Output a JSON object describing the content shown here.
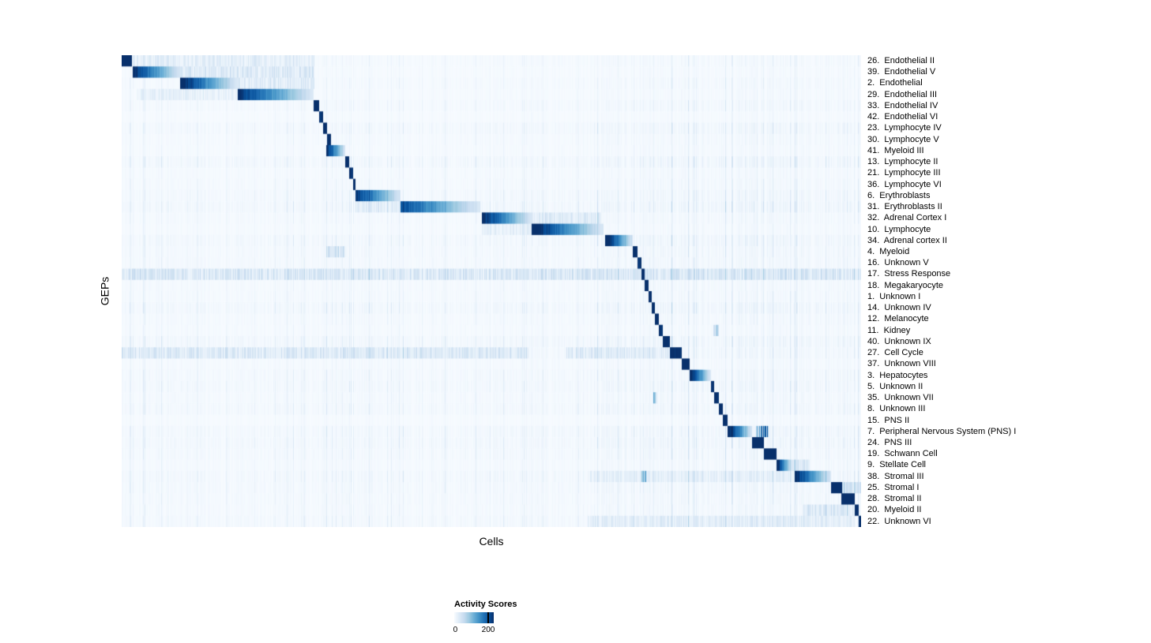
{
  "chart_data": {
    "type": "heatmap",
    "title": "",
    "xlabel": "Cells",
    "ylabel": "GEPs",
    "colormap": "Blues",
    "seed": 42,
    "colors": [
      "#f7fbff",
      "#deebf7",
      "#c6dbef",
      "#9ecae1",
      "#6baed6",
      "#4292c6",
      "#2171b5",
      "#08519c",
      "#08306b"
    ],
    "legend": {
      "title": "Activity Scores",
      "tick_labels": [
        "0",
        "200"
      ],
      "vmin": 0,
      "vmax": 200
    },
    "rows": [
      "26.  Endothelial II",
      "39.  Endothelial V",
      "2.  Endothelial",
      "29.  Endothelial III",
      "33.  Endothelial IV",
      "42.  Endothelial VI",
      "23.  Lymphocyte IV",
      "30.  Lymphocyte V",
      "41.  Myeloid III",
      "13.  Lymphocyte II",
      "21.  Lymphocyte III",
      "36.  Lymphocyte VI",
      "6.  Erythroblasts",
      "31.  Erythroblasts II",
      "32.  Adrenal Cortex I",
      "10.  Lymphocyte",
      "34.  Adrenal cortex II",
      "4.  Myeloid",
      "16.  Unknown V",
      "17.  Stress Response",
      "18.  Megakaryocyte",
      "1.  Unknown I",
      "14.  Unknown IV",
      "12.  Melanocyte",
      "11.  Kidney",
      "40.  Unknown IX",
      "27.  Cell Cycle",
      "37.  Unknown VIII",
      "3.  Hepatocytes",
      "5.  Unknown II",
      "35.  Unknown VII",
      "8.  Unknown III",
      "15.  PNS II",
      "7.  Peripheral Nervous System (PNS) I",
      "24.  PNS III",
      "19.  Schwann Cell",
      "9.  Stellate Cell",
      "38.  Stromal III",
      "25.  Stromal I",
      "28.  Stromal II",
      "20.  Myeloid II",
      "22.  Unknown VI"
    ],
    "diagonal_blocks": [
      {
        "row": 0,
        "x0": 0.0,
        "x1": 0.013,
        "peak": 240
      },
      {
        "row": 1,
        "x0": 0.014,
        "x1": 0.081,
        "peak": 220
      },
      {
        "row": 2,
        "x0": 0.079,
        "x1": 0.156,
        "peak": 230
      },
      {
        "row": 3,
        "x0": 0.156,
        "x1": 0.259,
        "peak": 220
      },
      {
        "row": 4,
        "x0": 0.259,
        "x1": 0.267,
        "peak": 230
      },
      {
        "row": 5,
        "x0": 0.267,
        "x1": 0.272,
        "peak": 220
      },
      {
        "row": 6,
        "x0": 0.272,
        "x1": 0.277,
        "peak": 220
      },
      {
        "row": 7,
        "x0": 0.277,
        "x1": 0.283,
        "peak": 220
      },
      {
        "row": 8,
        "x0": 0.276,
        "x1": 0.302,
        "peak": 230
      },
      {
        "row": 9,
        "x0": 0.302,
        "x1": 0.307,
        "peak": 220
      },
      {
        "row": 10,
        "x0": 0.307,
        "x1": 0.312,
        "peak": 220
      },
      {
        "row": 11,
        "x0": 0.312,
        "x1": 0.316,
        "peak": 220
      },
      {
        "row": 12,
        "x0": 0.316,
        "x1": 0.377,
        "peak": 210
      },
      {
        "row": 13,
        "x0": 0.377,
        "x1": 0.485,
        "peak": 190
      },
      {
        "row": 14,
        "x0": 0.487,
        "x1": 0.554,
        "peak": 230
      },
      {
        "row": 15,
        "x0": 0.554,
        "x1": 0.651,
        "peak": 240
      },
      {
        "row": 16,
        "x0": 0.653,
        "x1": 0.691,
        "peak": 240
      },
      {
        "row": 17,
        "x0": 0.691,
        "x1": 0.697,
        "peak": 230
      },
      {
        "row": 18,
        "x0": 0.697,
        "x1": 0.702,
        "peak": 220
      },
      {
        "row": 19,
        "x0": 0.702,
        "x1": 0.707,
        "peak": 220
      },
      {
        "row": 20,
        "x0": 0.707,
        "x1": 0.712,
        "peak": 220
      },
      {
        "row": 21,
        "x0": 0.712,
        "x1": 0.716,
        "peak": 220
      },
      {
        "row": 22,
        "x0": 0.716,
        "x1": 0.721,
        "peak": 220
      },
      {
        "row": 23,
        "x0": 0.721,
        "x1": 0.726,
        "peak": 220
      },
      {
        "row": 24,
        "x0": 0.726,
        "x1": 0.731,
        "peak": 220
      },
      {
        "row": 25,
        "x0": 0.731,
        "x1": 0.741,
        "peak": 220
      },
      {
        "row": 26,
        "x0": 0.741,
        "x1": 0.757,
        "peak": 220
      },
      {
        "row": 27,
        "x0": 0.757,
        "x1": 0.768,
        "peak": 230
      },
      {
        "row": 28,
        "x0": 0.768,
        "x1": 0.796,
        "peak": 230
      },
      {
        "row": 29,
        "x0": 0.796,
        "x1": 0.801,
        "peak": 220
      },
      {
        "row": 30,
        "x0": 0.801,
        "x1": 0.807,
        "peak": 220
      },
      {
        "row": 31,
        "x0": 0.807,
        "x1": 0.812,
        "peak": 220
      },
      {
        "row": 32,
        "x0": 0.812,
        "x1": 0.819,
        "peak": 230
      },
      {
        "row": 33,
        "x0": 0.819,
        "x1": 0.852,
        "peak": 240
      },
      {
        "row": 34,
        "x0": 0.852,
        "x1": 0.868,
        "peak": 240
      },
      {
        "row": 35,
        "x0": 0.868,
        "x1": 0.885,
        "peak": 240
      },
      {
        "row": 36,
        "x0": 0.885,
        "x1": 0.906,
        "peak": 240
      },
      {
        "row": 37,
        "x0": 0.91,
        "x1": 0.959,
        "peak": 220
      },
      {
        "row": 38,
        "x0": 0.959,
        "x1": 0.974,
        "peak": 230
      },
      {
        "row": 39,
        "x0": 0.973,
        "x1": 0.991,
        "peak": 240
      },
      {
        "row": 40,
        "x0": 0.991,
        "x1": 0.996,
        "peak": 230
      },
      {
        "row": 41,
        "x0": 0.996,
        "x1": 1.0,
        "peak": 230
      }
    ],
    "secondary_blocks": [
      {
        "row": 0,
        "x0": 0.013,
        "x1": 0.26,
        "peak": 32
      },
      {
        "row": 1,
        "x0": 0.081,
        "x1": 0.26,
        "peak": 45
      },
      {
        "row": 2,
        "x0": 0.156,
        "x1": 0.26,
        "peak": 38
      },
      {
        "row": 3,
        "x0": 0.02,
        "x1": 0.156,
        "peak": 28
      },
      {
        "row": 13,
        "x0": 0.316,
        "x1": 0.377,
        "peak": 30
      },
      {
        "row": 14,
        "x0": 0.554,
        "x1": 0.648,
        "peak": 40
      },
      {
        "row": 15,
        "x0": 0.487,
        "x1": 0.554,
        "peak": 28
      },
      {
        "row": 17,
        "x0": 0.276,
        "x1": 0.302,
        "peak": 60
      },
      {
        "row": 19,
        "x0": 0.0,
        "x1": 1.0,
        "peak": 48
      },
      {
        "row": 24,
        "x0": 0.8,
        "x1": 0.807,
        "peak": 130
      },
      {
        "row": 26,
        "x0": 0.0,
        "x1": 0.55,
        "peak": 45
      },
      {
        "row": 26,
        "x0": 0.6,
        "x1": 0.74,
        "peak": 35
      },
      {
        "row": 30,
        "x0": 0.718,
        "x1": 0.724,
        "peak": 110
      },
      {
        "row": 33,
        "x0": 0.857,
        "x1": 0.875,
        "peak": 200
      },
      {
        "row": 36,
        "x0": 0.906,
        "x1": 0.93,
        "peak": 55
      },
      {
        "row": 37,
        "x0": 0.702,
        "x1": 0.709,
        "peak": 150
      },
      {
        "row": 37,
        "x0": 0.63,
        "x1": 0.91,
        "peak": 22
      },
      {
        "row": 38,
        "x0": 0.974,
        "x1": 1.0,
        "peak": 55
      },
      {
        "row": 40,
        "x0": 0.92,
        "x1": 0.99,
        "peak": 45
      },
      {
        "row": 41,
        "x0": 0.63,
        "x1": 0.99,
        "peak": 28
      }
    ]
  }
}
